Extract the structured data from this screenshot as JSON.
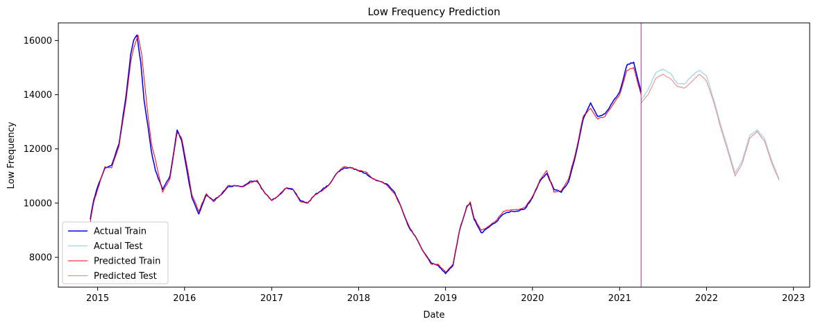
{
  "chart_data": {
    "type": "line",
    "title": "Low Frequency Prediction",
    "xlabel": "Date",
    "ylabel": "Low Frequency",
    "x_axis": "date",
    "xlim": [
      "2014-07-20",
      "2023-03-10"
    ],
    "ylim": [
      6900,
      16650
    ],
    "x_ticks": [
      "2015",
      "2016",
      "2017",
      "2018",
      "2019",
      "2020",
      "2021",
      "2022",
      "2023"
    ],
    "y_ticks": [
      8000,
      10000,
      12000,
      14000,
      16000
    ],
    "grid": false,
    "legend_position": "bottom-left",
    "split_date": "2021-04-01",
    "colors": {
      "actual_train": "#0000ff",
      "actual_test": "#add8e6",
      "predicted_train": "#ff0000",
      "predicted_test": "#f08080",
      "split_line": "#800080"
    },
    "series": [
      {
        "name": "Actual Train",
        "points": [
          [
            "2014-12-01",
            9400
          ],
          [
            "2014-12-15",
            10100
          ],
          [
            "2015-01-01",
            10600
          ],
          [
            "2015-02-01",
            11300
          ],
          [
            "2015-03-01",
            11400
          ],
          [
            "2015-04-01",
            12200
          ],
          [
            "2015-05-01",
            14000
          ],
          [
            "2015-05-20",
            15500
          ],
          [
            "2015-06-01",
            16000
          ],
          [
            "2015-06-15",
            16200
          ],
          [
            "2015-07-01",
            15200
          ],
          [
            "2015-07-15",
            13800
          ],
          [
            "2015-08-01",
            12800
          ],
          [
            "2015-08-15",
            11900
          ],
          [
            "2015-09-01",
            11200
          ],
          [
            "2015-10-01",
            10500
          ],
          [
            "2015-11-01",
            11000
          ],
          [
            "2015-12-01",
            12700
          ],
          [
            "2015-12-20",
            12300
          ],
          [
            "2016-01-15",
            11000
          ],
          [
            "2016-02-01",
            10200
          ],
          [
            "2016-03-01",
            9600
          ],
          [
            "2016-04-01",
            10300
          ],
          [
            "2016-05-01",
            10100
          ],
          [
            "2016-06-01",
            10300
          ],
          [
            "2016-07-01",
            10600
          ],
          [
            "2016-08-01",
            10650
          ],
          [
            "2016-09-01",
            10600
          ],
          [
            "2016-10-01",
            10800
          ],
          [
            "2016-11-01",
            10800
          ],
          [
            "2016-12-01",
            10400
          ],
          [
            "2017-01-01",
            10100
          ],
          [
            "2017-02-01",
            10300
          ],
          [
            "2017-03-01",
            10550
          ],
          [
            "2017-04-01",
            10500
          ],
          [
            "2017-05-01",
            10100
          ],
          [
            "2017-06-01",
            10000
          ],
          [
            "2017-07-01",
            10300
          ],
          [
            "2017-08-01",
            10500
          ],
          [
            "2017-09-01",
            10700
          ],
          [
            "2017-10-01",
            11100
          ],
          [
            "2017-11-01",
            11300
          ],
          [
            "2017-12-01",
            11300
          ],
          [
            "2018-01-01",
            11200
          ],
          [
            "2018-02-01",
            11100
          ],
          [
            "2018-03-01",
            10900
          ],
          [
            "2018-04-01",
            10800
          ],
          [
            "2018-05-01",
            10700
          ],
          [
            "2018-06-01",
            10400
          ],
          [
            "2018-07-01",
            9800
          ],
          [
            "2018-08-01",
            9100
          ],
          [
            "2018-09-01",
            8700
          ],
          [
            "2018-10-01",
            8200
          ],
          [
            "2018-11-01",
            7800
          ],
          [
            "2018-12-01",
            7700
          ],
          [
            "2019-01-01",
            7400
          ],
          [
            "2019-02-01",
            7700
          ],
          [
            "2019-03-01",
            9000
          ],
          [
            "2019-04-01",
            9900
          ],
          [
            "2019-04-15",
            10000
          ],
          [
            "2019-05-01",
            9400
          ],
          [
            "2019-06-01",
            8900
          ],
          [
            "2019-07-01",
            9100
          ],
          [
            "2019-08-01",
            9300
          ],
          [
            "2019-09-01",
            9600
          ],
          [
            "2019-10-01",
            9700
          ],
          [
            "2019-11-01",
            9700
          ],
          [
            "2019-12-01",
            9800
          ],
          [
            "2020-01-01",
            10200
          ],
          [
            "2020-02-01",
            10800
          ],
          [
            "2020-03-01",
            11100
          ],
          [
            "2020-04-01",
            10500
          ],
          [
            "2020-05-01",
            10400
          ],
          [
            "2020-06-01",
            10800
          ],
          [
            "2020-07-01",
            11800
          ],
          [
            "2020-08-01",
            13100
          ],
          [
            "2020-09-01",
            13700
          ],
          [
            "2020-10-01",
            13200
          ],
          [
            "2020-11-01",
            13300
          ],
          [
            "2020-12-01",
            13700
          ],
          [
            "2021-01-01",
            14100
          ],
          [
            "2021-02-01",
            15100
          ],
          [
            "2021-03-01",
            15200
          ],
          [
            "2021-04-01",
            14100
          ]
        ]
      },
      {
        "name": "Actual Test",
        "points": [
          [
            "2021-04-01",
            13800
          ],
          [
            "2021-05-01",
            14200
          ],
          [
            "2021-06-01",
            14800
          ],
          [
            "2021-07-01",
            14950
          ],
          [
            "2021-08-01",
            14800
          ],
          [
            "2021-09-01",
            14400
          ],
          [
            "2021-10-01",
            14400
          ],
          [
            "2021-11-01",
            14700
          ],
          [
            "2021-12-01",
            14900
          ],
          [
            "2022-01-01",
            14700
          ],
          [
            "2022-02-01",
            13800
          ],
          [
            "2022-03-01",
            12900
          ],
          [
            "2022-04-01",
            12000
          ],
          [
            "2022-05-01",
            11100
          ],
          [
            "2022-06-01",
            11600
          ],
          [
            "2022-07-01",
            12500
          ],
          [
            "2022-08-01",
            12700
          ],
          [
            "2022-09-01",
            12400
          ],
          [
            "2022-10-01",
            11600
          ],
          [
            "2022-11-01",
            10900
          ]
        ]
      },
      {
        "name": "Predicted Train",
        "points": [
          [
            "2014-12-01",
            9300
          ],
          [
            "2014-12-15",
            10000
          ],
          [
            "2015-01-01",
            10500
          ],
          [
            "2015-02-01",
            11350
          ],
          [
            "2015-03-01",
            11300
          ],
          [
            "2015-04-01",
            12100
          ],
          [
            "2015-05-01",
            13800
          ],
          [
            "2015-05-20",
            15200
          ],
          [
            "2015-06-01",
            15700
          ],
          [
            "2015-06-20",
            16200
          ],
          [
            "2015-07-05",
            15500
          ],
          [
            "2015-07-20",
            14200
          ],
          [
            "2015-08-01",
            13200
          ],
          [
            "2015-08-15",
            12200
          ],
          [
            "2015-09-01",
            11600
          ],
          [
            "2015-10-01",
            10400
          ],
          [
            "2015-11-01",
            10900
          ],
          [
            "2015-12-01",
            12600
          ],
          [
            "2015-12-20",
            12400
          ],
          [
            "2016-01-15",
            11200
          ],
          [
            "2016-02-01",
            10300
          ],
          [
            "2016-03-01",
            9700
          ],
          [
            "2016-04-01",
            10350
          ],
          [
            "2016-05-01",
            10050
          ],
          [
            "2016-06-01",
            10300
          ],
          [
            "2016-07-01",
            10650
          ],
          [
            "2016-08-01",
            10650
          ],
          [
            "2016-09-01",
            10600
          ],
          [
            "2016-10-01",
            10750
          ],
          [
            "2016-11-01",
            10850
          ],
          [
            "2016-12-01",
            10400
          ],
          [
            "2017-01-01",
            10100
          ],
          [
            "2017-02-01",
            10300
          ],
          [
            "2017-03-01",
            10550
          ],
          [
            "2017-04-01",
            10500
          ],
          [
            "2017-05-01",
            10050
          ],
          [
            "2017-06-01",
            10000
          ],
          [
            "2017-07-01",
            10300
          ],
          [
            "2017-08-01",
            10450
          ],
          [
            "2017-09-01",
            10700
          ],
          [
            "2017-10-01",
            11100
          ],
          [
            "2017-11-01",
            11350
          ],
          [
            "2017-12-01",
            11300
          ],
          [
            "2018-01-01",
            11200
          ],
          [
            "2018-02-01",
            11150
          ],
          [
            "2018-03-01",
            10900
          ],
          [
            "2018-04-01",
            10800
          ],
          [
            "2018-05-01",
            10650
          ],
          [
            "2018-06-01",
            10350
          ],
          [
            "2018-07-01",
            9800
          ],
          [
            "2018-08-01",
            9150
          ],
          [
            "2018-09-01",
            8700
          ],
          [
            "2018-10-01",
            8200
          ],
          [
            "2018-11-01",
            7750
          ],
          [
            "2018-12-01",
            7750
          ],
          [
            "2019-01-01",
            7450
          ],
          [
            "2019-02-01",
            7750
          ],
          [
            "2019-03-01",
            9000
          ],
          [
            "2019-04-01",
            9850
          ],
          [
            "2019-04-15",
            10050
          ],
          [
            "2019-05-01",
            9450
          ],
          [
            "2019-06-01",
            9000
          ],
          [
            "2019-07-01",
            9150
          ],
          [
            "2019-08-01",
            9350
          ],
          [
            "2019-09-01",
            9700
          ],
          [
            "2019-10-01",
            9750
          ],
          [
            "2019-11-01",
            9750
          ],
          [
            "2019-12-01",
            9850
          ],
          [
            "2020-01-01",
            10250
          ],
          [
            "2020-02-01",
            10850
          ],
          [
            "2020-03-01",
            11200
          ],
          [
            "2020-04-01",
            10400
          ],
          [
            "2020-05-01",
            10450
          ],
          [
            "2020-06-01",
            10900
          ],
          [
            "2020-07-01",
            11900
          ],
          [
            "2020-08-01",
            13200
          ],
          [
            "2020-09-01",
            13500
          ],
          [
            "2020-10-01",
            13100
          ],
          [
            "2020-11-01",
            13200
          ],
          [
            "2020-12-01",
            13600
          ],
          [
            "2021-01-01",
            14000
          ],
          [
            "2021-02-01",
            14900
          ],
          [
            "2021-03-01",
            15000
          ],
          [
            "2021-04-01",
            14000
          ]
        ]
      },
      {
        "name": "Predicted Test",
        "points": [
          [
            "2021-04-01",
            13700
          ],
          [
            "2021-05-01",
            14000
          ],
          [
            "2021-06-01",
            14600
          ],
          [
            "2021-07-01",
            14750
          ],
          [
            "2021-08-01",
            14600
          ],
          [
            "2021-09-01",
            14300
          ],
          [
            "2021-10-01",
            14250
          ],
          [
            "2021-11-01",
            14500
          ],
          [
            "2021-12-01",
            14750
          ],
          [
            "2022-01-01",
            14500
          ],
          [
            "2022-02-01",
            13700
          ],
          [
            "2022-03-01",
            12800
          ],
          [
            "2022-04-01",
            11900
          ],
          [
            "2022-05-01",
            11000
          ],
          [
            "2022-06-01",
            11500
          ],
          [
            "2022-07-01",
            12400
          ],
          [
            "2022-08-01",
            12650
          ],
          [
            "2022-09-01",
            12300
          ],
          [
            "2022-10-01",
            11500
          ],
          [
            "2022-11-01",
            10850
          ]
        ]
      }
    ]
  }
}
